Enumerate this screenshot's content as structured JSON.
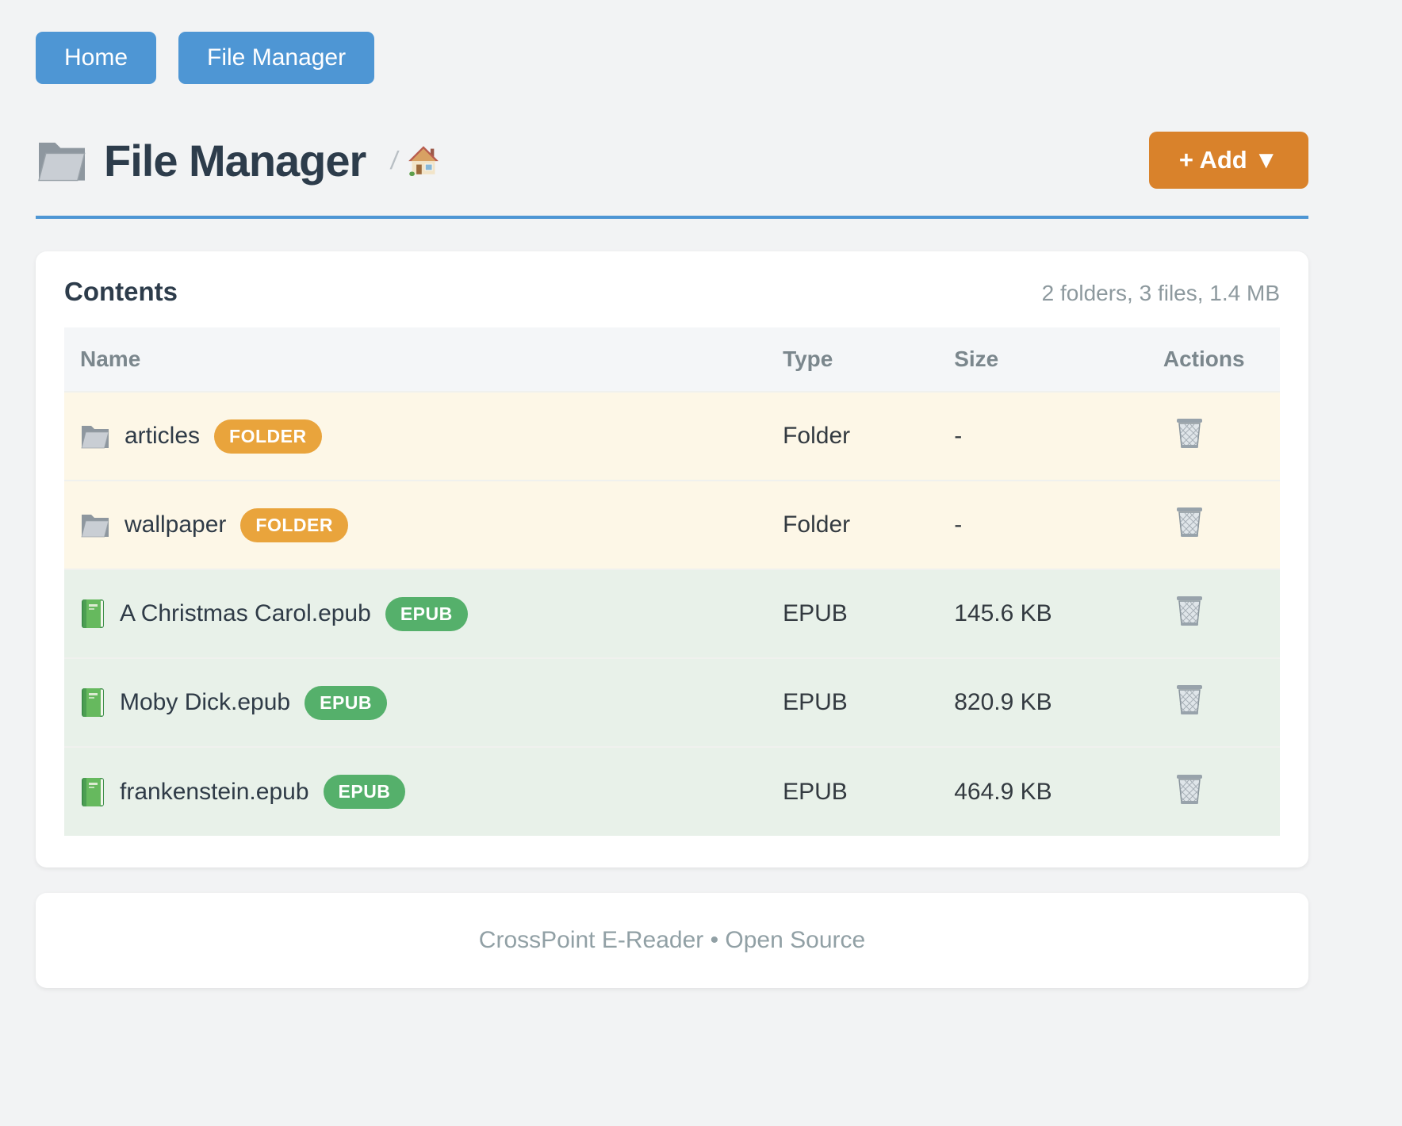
{
  "nav": {
    "items": [
      {
        "label": "Home"
      },
      {
        "label": "File Manager"
      }
    ]
  },
  "header": {
    "title": "File Manager",
    "title_icon": "folder-icon",
    "breadcrumb_separator": "/",
    "breadcrumb_home_icon": "house-icon",
    "add_button_label": "+ Add ▼"
  },
  "contents": {
    "heading": "Contents",
    "summary": "2 folders, 3 files, 1.4 MB"
  },
  "table": {
    "headers": [
      "Name",
      "Type",
      "Size",
      "Actions"
    ],
    "rows": [
      {
        "name": "articles",
        "icon": "folder-icon",
        "badge": "FOLDER",
        "kind": "folder",
        "type": "Folder",
        "size": "-",
        "action_icon": "trash-icon"
      },
      {
        "name": "wallpaper",
        "icon": "folder-icon",
        "badge": "FOLDER",
        "kind": "folder",
        "type": "Folder",
        "size": "-",
        "action_icon": "trash-icon"
      },
      {
        "name": "A Christmas Carol.epub",
        "icon": "book-icon",
        "badge": "EPUB",
        "kind": "epub",
        "type": "EPUB",
        "size": "145.6 KB",
        "action_icon": "trash-icon"
      },
      {
        "name": "Moby Dick.epub",
        "icon": "book-icon",
        "badge": "EPUB",
        "kind": "epub",
        "type": "EPUB",
        "size": "820.9 KB",
        "action_icon": "trash-icon"
      },
      {
        "name": "frankenstein.epub",
        "icon": "book-icon",
        "badge": "EPUB",
        "kind": "epub",
        "type": "EPUB",
        "size": "464.9 KB",
        "action_icon": "trash-icon"
      }
    ]
  },
  "footer": {
    "text": "CrossPoint E-Reader • Open Source"
  },
  "colors": {
    "page_bg": "#f2f3f4",
    "accent": "#4e96d4",
    "orange": "#d9822b",
    "badge_folder": "#e9a43c",
    "badge_epub": "#55b06b",
    "row_folder_bg": "#fdf7e7",
    "row_epub_bg": "#e8f1e9",
    "title_color": "#2d3c4b",
    "header_text": "#7b878d",
    "body_text": "#333a40",
    "muted_text": "#8d999e",
    "table_header_bg": "#f4f6f8"
  }
}
